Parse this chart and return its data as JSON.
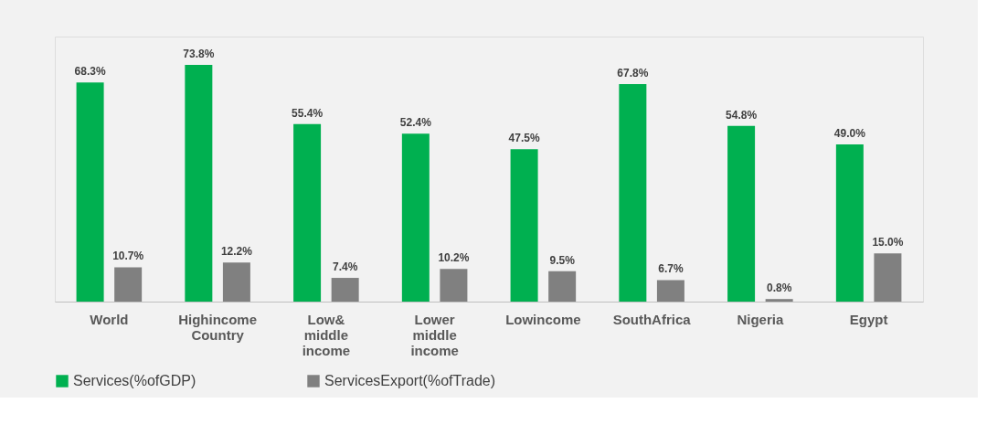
{
  "chart_data": {
    "type": "bar",
    "categories": [
      "World",
      "Highincome Country",
      "Low& middle income",
      "Lower middle income",
      "Lowincome",
      "SouthAfrica",
      "Nigeria",
      "Egypt"
    ],
    "series": [
      {
        "name": "Services(%ofGDP)",
        "color": "#00b050",
        "values": [
          68.3,
          73.8,
          55.4,
          52.4,
          47.5,
          67.8,
          54.8,
          49.0
        ],
        "value_labels": [
          "68.3%",
          "73.8%",
          "55.4%",
          "52.4%",
          "47.5%",
          "67.8%",
          "54.8%",
          "49.0%"
        ]
      },
      {
        "name": "ServicesExport(%ofTrade)",
        "color": "#808080",
        "values": [
          10.7,
          12.2,
          7.4,
          10.2,
          9.5,
          6.7,
          0.8,
          15.0
        ],
        "value_labels": [
          "10.7%",
          "12.2%",
          "7.4%",
          "10.2%",
          "9.5%",
          "6.7%",
          "0.8%",
          "15.0%"
        ]
      }
    ],
    "legend": "bottom",
    "grid": false,
    "tick_labels": "x"
  }
}
